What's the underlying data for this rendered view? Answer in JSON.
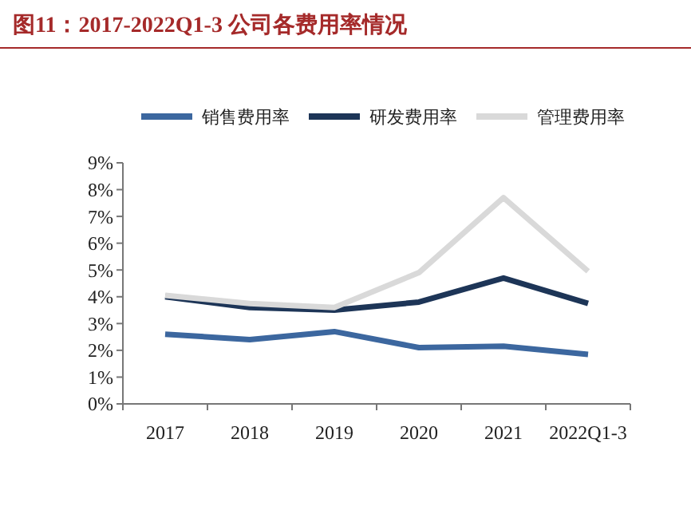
{
  "chart_data": {
    "type": "line",
    "title": "图11：2017-2022Q1-3 公司各费用率情况",
    "categories": [
      "2017",
      "2018",
      "2019",
      "2020",
      "2021",
      "2022Q1-3"
    ],
    "series": [
      {
        "name": "销售费用率",
        "color": "#3c679f",
        "values": [
          2.6,
          2.4,
          2.7,
          2.1,
          2.15,
          1.85
        ]
      },
      {
        "name": "研发费用率",
        "color": "#1d3557",
        "values": [
          4.0,
          3.6,
          3.5,
          3.8,
          4.7,
          3.75
        ]
      },
      {
        "name": "管理费用率",
        "color": "#d9d9d9",
        "values": [
          4.05,
          3.75,
          3.6,
          4.9,
          7.7,
          4.95
        ]
      }
    ],
    "ylim": [
      0,
      9
    ],
    "yticks": [
      {
        "value": 0,
        "label": "0%"
      },
      {
        "value": 1,
        "label": "1%"
      },
      {
        "value": 2,
        "label": "2%"
      },
      {
        "value": 3,
        "label": "3%"
      },
      {
        "value": 4,
        "label": "4%"
      },
      {
        "value": 5,
        "label": "5%"
      },
      {
        "value": 6,
        "label": "6%"
      },
      {
        "value": 7,
        "label": "7%"
      },
      {
        "value": 8,
        "label": "8%"
      },
      {
        "value": 9,
        "label": "9%"
      }
    ],
    "grid": false,
    "legend": "top",
    "marker": "none",
    "line_style": "solid"
  }
}
